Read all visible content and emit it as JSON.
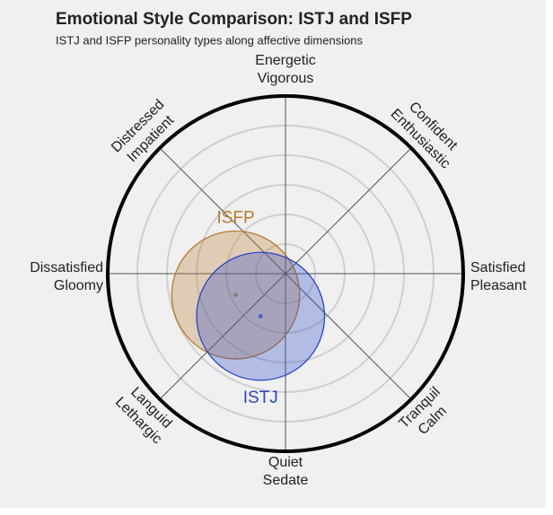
{
  "chart_data": {
    "type": "circumplex",
    "title": "Emotional Style Comparison: ISTJ and ISFP",
    "subtitle": "ISTJ and ISFP personality types along affective dimensions",
    "axis_labels": [
      [
        "Satisfied",
        "Pleasant"
      ],
      [
        "Confident",
        "Enthusiastic"
      ],
      [
        "Energetic",
        "Vigorous"
      ],
      [
        "Distressed",
        "Impatient"
      ],
      [
        "Dissatisfied",
        "Gloomy"
      ],
      [
        "Languid",
        "Lethargic"
      ],
      [
        "Quiet",
        "Sedate"
      ],
      [
        "Tranquil",
        "Calm"
      ]
    ],
    "xlim": [
      -1,
      1
    ],
    "ylim": [
      -1,
      1
    ],
    "series": [
      {
        "name": "ISFP",
        "color": "#b87a2e",
        "x": -0.28,
        "y": -0.12,
        "size": 0.36
      },
      {
        "name": "ISTJ",
        "color": "#2747c9",
        "x": -0.14,
        "y": -0.24,
        "size": 0.36
      }
    ]
  }
}
